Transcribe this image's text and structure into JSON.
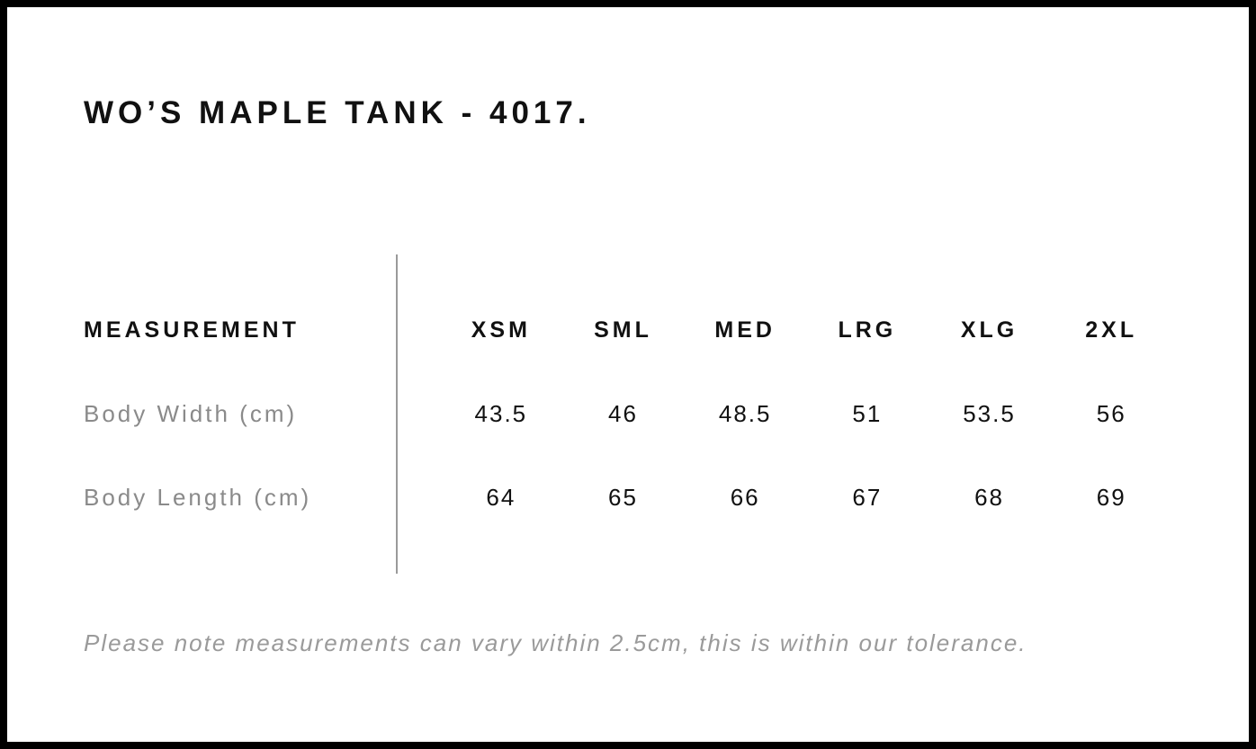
{
  "page": {
    "title": "WO’S MAPLE TANK - 4017.",
    "footnote": "Please note measurements can vary within 2.5cm, this is within our tolerance."
  },
  "size_chart": {
    "measurement_header": "MEASUREMENT",
    "size_headers": [
      "XSM",
      "SML",
      "MED",
      "LRG",
      "XLG",
      "2XL"
    ],
    "rows": [
      {
        "label": "Body Width (cm)",
        "values": [
          "43.5",
          "46",
          "48.5",
          "51",
          "53.5",
          "56"
        ]
      },
      {
        "label": "Body Length (cm)",
        "values": [
          "64",
          "65",
          "66",
          "67",
          "68",
          "69"
        ]
      }
    ]
  },
  "chart_data": {
    "type": "table",
    "title": "WO’S MAPLE TANK - 4017.",
    "columns": [
      "MEASUREMENT",
      "XSM",
      "SML",
      "MED",
      "LRG",
      "XLG",
      "2XL"
    ],
    "series": [
      {
        "name": "Body Width (cm)",
        "values": [
          43.5,
          46,
          48.5,
          51,
          53.5,
          56
        ]
      },
      {
        "name": "Body Length (cm)",
        "values": [
          64,
          65,
          66,
          67,
          68,
          69
        ]
      }
    ]
  },
  "colors": {
    "border": "#000000",
    "text_primary": "#111111",
    "text_muted": "#8a8a8a",
    "footnote_text": "#9a9a9a",
    "divider": "#9a9a9a",
    "background": "#ffffff"
  }
}
